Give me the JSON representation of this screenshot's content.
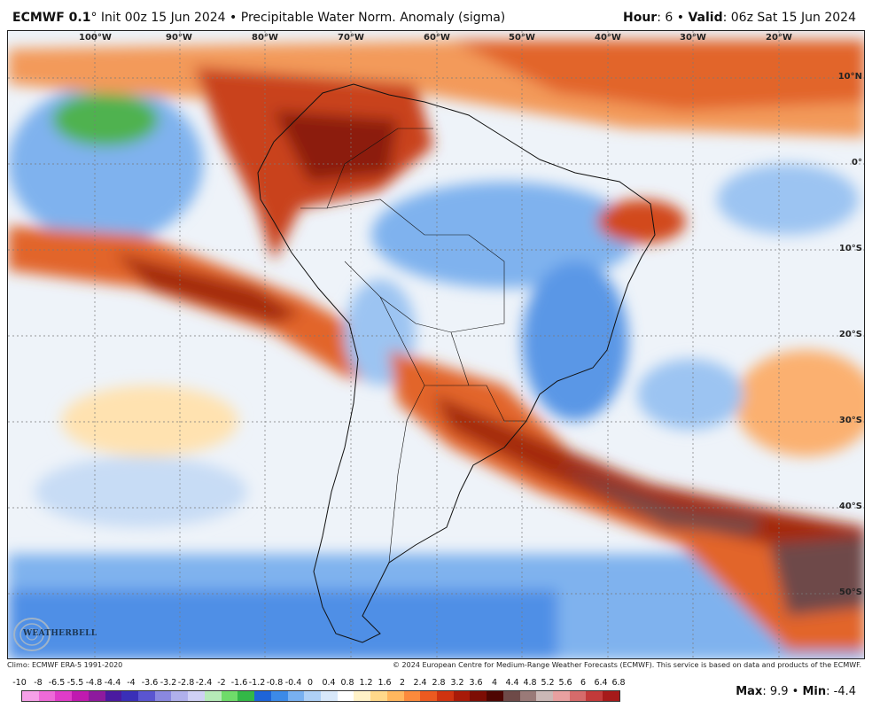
{
  "header": {
    "model": "ECMWF 0.1",
    "degree": "°",
    "init": " Init 00z 15 Jun 2024",
    "bullet": " • ",
    "product": "Precipitable Water Norm. Anomaly (sigma)",
    "hour_label": "Hour",
    "hour_value": ": 6 • ",
    "valid_label": "Valid",
    "valid_value": ": 06z Sat 15 Jun 2024"
  },
  "map": {
    "lon_labels": [
      "100°W",
      "90°W",
      "80°W",
      "70°W",
      "60°W",
      "50°W",
      "40°W",
      "30°W",
      "20°W"
    ],
    "lat_labels": [
      "10°N",
      "0°",
      "10°S",
      "20°S",
      "30°S",
      "40°S",
      "50°S"
    ]
  },
  "logo": {
    "text": "WEATHERBELL"
  },
  "footer": {
    "climo": "Climo: ECMWF ERA-5 1991-2020",
    "credit": "© 2024 European Centre for Medium-Range Weather Forecasts (ECMWF). This service is based on data and products of the ECMWF."
  },
  "colorbar": {
    "labels": [
      "-10",
      "-8",
      "-6.5",
      "-5.5",
      "-4.8",
      "-4.4",
      "-4",
      "-3.6",
      "-3.2",
      "-2.8",
      "-2.4",
      "-2",
      "-1.6",
      "-1.2",
      "-0.8",
      "-0.4",
      "0",
      "0.4",
      "0.8",
      "1.2",
      "1.6",
      "2",
      "2.4",
      "2.8",
      "3.2",
      "3.6",
      "4",
      "4.4",
      "4.8",
      "5.2",
      "5.6",
      "6",
      "6.4",
      "6.8"
    ],
    "colors": [
      "#f6a0e8",
      "#ee6ad8",
      "#e03cc8",
      "#c01ab0",
      "#8e1a9e",
      "#4a1aa0",
      "#3a2fb8",
      "#5a55d0",
      "#8a88e0",
      "#b0b0ec",
      "#cfd0f4",
      "#b6eab8",
      "#6fdc6a",
      "#33b847",
      "#1e64d8",
      "#3c8ae8",
      "#78b0f0",
      "#aed0f6",
      "#d8e8fa",
      "#ffffff",
      "#fff2c8",
      "#ffd98a",
      "#ffb75e",
      "#fb8a3c",
      "#ec5a20",
      "#cf3310",
      "#a81a08",
      "#7d0d04",
      "#4e0602",
      "#6e4a48",
      "#9a7a78",
      "#cbb8b6",
      "#e8a0a0",
      "#d66b6b",
      "#c23a3a",
      "#a61a1a"
    ],
    "accent_negative": "#3c8ae8",
    "accent_positive": "#cf3310"
  },
  "stats": {
    "max_label": "Max",
    "max_value": ": 9.9 • ",
    "min_label": "Min",
    "min_value": ": -4.4"
  }
}
